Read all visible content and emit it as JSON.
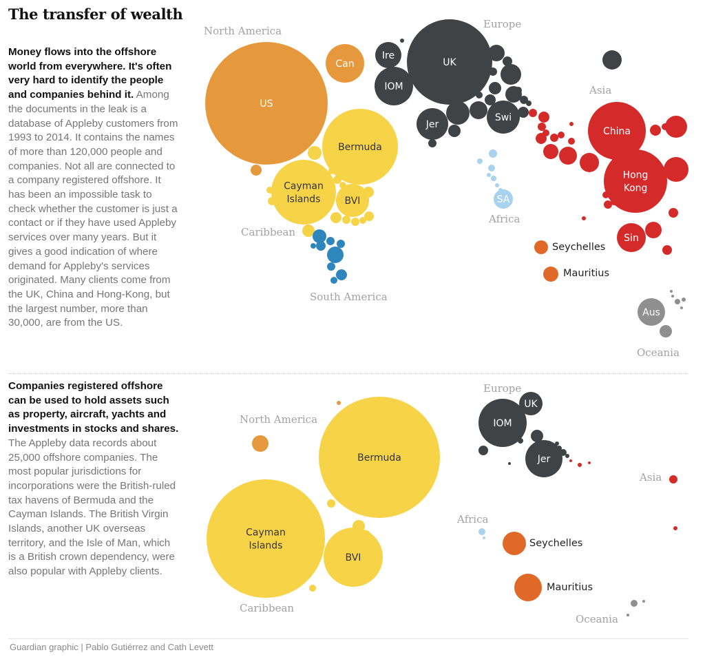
{
  "title": "The transfer of wealth",
  "colors": {
    "north_america": "#e6993c",
    "caribbean": "#f7d348",
    "south_america": "#2f86bd",
    "europe": "#3f4346",
    "africa": "#a8d2ee",
    "asia": "#d42a2a",
    "indian_ocean": "#e0692a",
    "oceania": "#8f8f8f"
  },
  "blocks": [
    {
      "lead": "Money flows into the offshore world from everywhere. It's often very hard to identify the people and companies behind it.",
      "body": " Among the documents in the leak is a database of Appleby customers from 1993 to 2014. It contains the names of more than 120,000 people and companies. Not all are connected to a company registered offshore. It has been an impossible task to check whether the customer is just a contact or if they have used Appleby services over many years. But it gives a good indication of where demand for Appleby's services originated. Many clients come from the UK, China and Hong-Kong, but the largest number, more than 30,000, are from the US."
    },
    {
      "lead": "Companies registered offshore can be used to hold assets such as property, aircraft, yachts and investments in stocks and shares.",
      "body": " The Appleby data records about 25,000 offshore companies. The most popular jurisdictions for incorporations were the British-ruled tax havens of Bermuda and the Cayman Islands. The British Virgin Islands, another UK overseas territory, and the Isle of Man, which is a British crown dependency, were also popular with Appleby clients."
    }
  ],
  "credit": "Guardian graphic | Pablo Gutiérrez and Cath Levett",
  "chart_data": [
    {
      "type": "bubble",
      "region_labels": [
        "North America",
        "Europe",
        "Asia",
        "Caribbean",
        "Africa",
        "South America",
        "Oceania"
      ],
      "labeled_bubbles": [
        {
          "label": "US",
          "region": "north_america"
        },
        {
          "label": "Can",
          "region": "north_america"
        },
        {
          "label": "Ire",
          "region": "europe"
        },
        {
          "label": "UK",
          "region": "europe"
        },
        {
          "label": "IOM",
          "region": "europe"
        },
        {
          "label": "Jer",
          "region": "europe"
        },
        {
          "label": "Swi",
          "region": "europe"
        },
        {
          "label": "Bermuda",
          "region": "caribbean"
        },
        {
          "label": "Cayman\nIslands",
          "region": "caribbean"
        },
        {
          "label": "BVI",
          "region": "caribbean"
        },
        {
          "label": "China",
          "region": "asia"
        },
        {
          "label": "Hong\nKong",
          "region": "asia"
        },
        {
          "label": "Sin",
          "region": "asia"
        },
        {
          "label": "SA",
          "region": "africa"
        },
        {
          "label": "Seychelles",
          "region": "indian_ocean"
        },
        {
          "label": "Mauritius",
          "region": "indian_ocean"
        },
        {
          "label": "Aus",
          "region": "oceania"
        }
      ]
    },
    {
      "type": "bubble",
      "region_labels": [
        "Europe",
        "North America",
        "Asia",
        "Africa",
        "Caribbean",
        "Oceania"
      ],
      "labeled_bubbles": [
        {
          "label": "UK",
          "region": "europe"
        },
        {
          "label": "IOM",
          "region": "europe"
        },
        {
          "label": "Jer",
          "region": "europe"
        },
        {
          "label": "Bermuda",
          "region": "caribbean"
        },
        {
          "label": "Cayman\nIslands",
          "region": "caribbean"
        },
        {
          "label": "BVI",
          "region": "caribbean"
        },
        {
          "label": "Seychelles",
          "region": "indian_ocean"
        },
        {
          "label": "Mauritius",
          "region": "indian_ocean"
        }
      ]
    }
  ]
}
